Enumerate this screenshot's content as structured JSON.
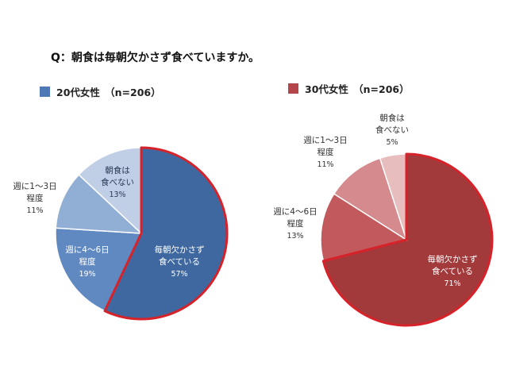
{
  "question": "Q：朝食は毎朝欠かさず食べていますか。",
  "colors": {
    "highlight_border": "#d7222a"
  },
  "chart_data": [
    {
      "type": "pie",
      "legend": "20代女性　（n=206）",
      "legend_color": "#4f79b4",
      "slices": [
        {
          "label": [
            "毎朝欠かさず",
            "食べている"
          ],
          "pct": "57%",
          "value": 57,
          "color": "#3e689f",
          "highlight": true
        },
        {
          "label": [
            "週に4〜6日",
            "程度"
          ],
          "pct": "19%",
          "value": 19,
          "color": "#6189c1",
          "highlight": false
        },
        {
          "label": [
            "週に1〜3日",
            "程度"
          ],
          "pct": "11%",
          "value": 11,
          "color": "#91aed5",
          "highlight": false
        },
        {
          "label": [
            "朝食は",
            "食べない"
          ],
          "pct": "13%",
          "value": 13,
          "color": "#c0cfe6",
          "highlight": false
        }
      ]
    },
    {
      "type": "pie",
      "legend": "30代女性　（n=206）",
      "legend_color": "#b4454a",
      "slices": [
        {
          "label": [
            "毎朝欠かさず",
            "食べている"
          ],
          "pct": "71%",
          "value": 71,
          "color": "#a23a3c",
          "highlight": true
        },
        {
          "label": [
            "週に4〜6日",
            "程度"
          ],
          "pct": "13%",
          "value": 13,
          "color": "#c25a5d",
          "highlight": false
        },
        {
          "label": [
            "週に1〜3日",
            "程度"
          ],
          "pct": "11%",
          "value": 11,
          "color": "#d58b8d",
          "highlight": false
        },
        {
          "label": [
            "朝食は",
            "食べない"
          ],
          "pct": "5%",
          "value": 5,
          "color": "#e8bdbe",
          "highlight": false
        }
      ]
    }
  ]
}
